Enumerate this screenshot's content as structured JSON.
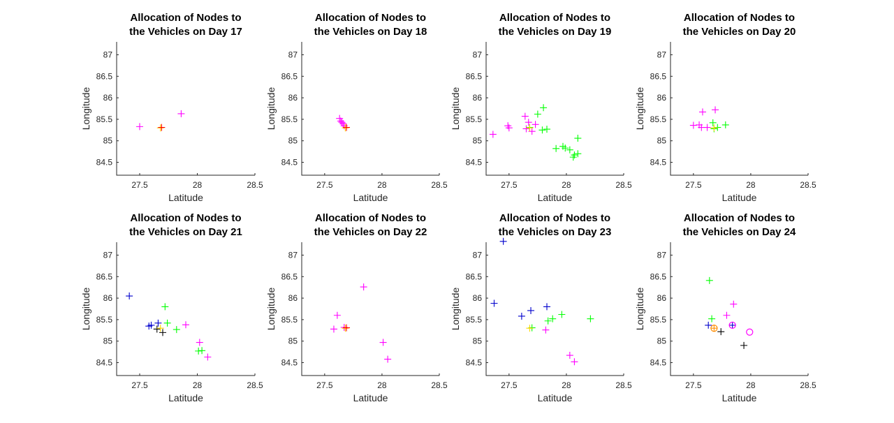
{
  "chart_data": [
    {
      "type": "scatter",
      "title_lines": [
        "Allocation of Nodes to",
        "the Vehicles on Day 17"
      ],
      "xlabel": "Latitude",
      "ylabel": "Longitude",
      "xlim": [
        27.3,
        28.5
      ],
      "ylim": [
        84.2,
        87.3
      ],
      "xticks": [
        "27.5",
        "28",
        "28.5"
      ],
      "xtick_values": [
        27.5,
        28,
        28.5
      ],
      "yticks": [
        "84.5",
        "85",
        "85.5",
        "86",
        "86.5",
        "87"
      ],
      "ytick_values": [
        84.5,
        85,
        85.5,
        86,
        86.5,
        87
      ],
      "series": [
        {
          "name": "vehicle-magenta",
          "color": "#ff00ff",
          "marker": "plus",
          "points": [
            [
              27.5,
              85.33
            ],
            [
              27.86,
              85.63
            ]
          ]
        },
        {
          "name": "vehicle-yellow",
          "color": "#ffd700",
          "marker": "plus",
          "points": [
            [
              27.68,
              85.3
            ]
          ]
        },
        {
          "name": "vehicle-red",
          "color": "#ff0000",
          "marker": "plus",
          "points": [
            [
              27.69,
              85.31
            ]
          ]
        }
      ]
    },
    {
      "type": "scatter",
      "title_lines": [
        "Allocation of Nodes to",
        "the Vehicles on Day 18"
      ],
      "xlabel": "Latitude",
      "ylabel": "Longitude",
      "xlim": [
        27.3,
        28.5
      ],
      "ylim": [
        84.2,
        87.3
      ],
      "xticks": [
        "27.5",
        "28",
        "28.5"
      ],
      "xtick_values": [
        27.5,
        28,
        28.5
      ],
      "yticks": [
        "84.5",
        "85",
        "85.5",
        "86",
        "86.5",
        "87"
      ],
      "ytick_values": [
        84.5,
        85,
        85.5,
        86,
        86.5,
        87
      ],
      "series": [
        {
          "name": "vehicle-magenta",
          "color": "#ff00ff",
          "marker": "plus",
          "points": [
            [
              27.63,
              85.52
            ],
            [
              27.64,
              85.46
            ],
            [
              27.65,
              85.43
            ],
            [
              27.66,
              85.4
            ],
            [
              27.67,
              85.35
            ]
          ]
        },
        {
          "name": "vehicle-yellow",
          "color": "#ffd700",
          "marker": "plus",
          "points": [
            [
              27.68,
              85.3
            ]
          ]
        },
        {
          "name": "vehicle-red",
          "color": "#ff0000",
          "marker": "plus",
          "points": [
            [
              27.69,
              85.31
            ]
          ]
        }
      ]
    },
    {
      "type": "scatter",
      "title_lines": [
        "Allocation of Nodes to",
        "the Vehicles on Day 19"
      ],
      "xlabel": "Latitude",
      "ylabel": "Longitude",
      "xlim": [
        27.3,
        28.5
      ],
      "ylim": [
        84.2,
        87.3
      ],
      "xticks": [
        "27.5",
        "28",
        "28.5"
      ],
      "xtick_values": [
        27.5,
        28,
        28.5
      ],
      "yticks": [
        "84.5",
        "85",
        "85.5",
        "86",
        "86.5",
        "87"
      ],
      "ytick_values": [
        84.5,
        85,
        85.5,
        86,
        86.5,
        87
      ],
      "series": [
        {
          "name": "vehicle-magenta",
          "color": "#ff00ff",
          "marker": "plus",
          "points": [
            [
              27.36,
              85.15
            ],
            [
              27.49,
              85.35
            ],
            [
              27.5,
              85.3
            ],
            [
              27.64,
              85.57
            ],
            [
              27.65,
              85.28
            ],
            [
              27.67,
              85.43
            ],
            [
              27.7,
              85.22
            ],
            [
              27.73,
              85.38
            ]
          ]
        },
        {
          "name": "vehicle-green",
          "color": "#00ff00",
          "marker": "plus",
          "points": [
            [
              27.68,
              85.31
            ],
            [
              27.75,
              85.62
            ],
            [
              27.8,
              85.77
            ],
            [
              27.79,
              85.25
            ],
            [
              27.83,
              85.27
            ],
            [
              27.91,
              84.82
            ],
            [
              27.97,
              84.87
            ],
            [
              27.99,
              84.83
            ],
            [
              28.03,
              84.79
            ],
            [
              28.07,
              84.67
            ],
            [
              28.06,
              84.62
            ],
            [
              28.1,
              84.7
            ],
            [
              28.1,
              85.06
            ]
          ]
        },
        {
          "name": "vehicle-yellow",
          "color": "#ffd700",
          "marker": "plus",
          "points": [
            [
              27.68,
              85.3
            ]
          ]
        }
      ]
    },
    {
      "type": "scatter",
      "title_lines": [
        "Allocation of Nodes to",
        "the Vehicles on Day 20"
      ],
      "xlabel": "Latitude",
      "ylabel": "Longitude",
      "xlim": [
        27.3,
        28.5
      ],
      "ylim": [
        84.2,
        87.3
      ],
      "xticks": [
        "27.5",
        "28",
        "28.5"
      ],
      "xtick_values": [
        27.5,
        28,
        28.5
      ],
      "yticks": [
        "84.5",
        "85",
        "85.5",
        "86",
        "86.5",
        "87"
      ],
      "ytick_values": [
        84.5,
        85,
        85.5,
        86,
        86.5,
        87
      ],
      "series": [
        {
          "name": "vehicle-magenta",
          "color": "#ff00ff",
          "marker": "plus",
          "points": [
            [
              27.5,
              85.36
            ],
            [
              27.55,
              85.37
            ],
            [
              27.57,
              85.31
            ],
            [
              27.58,
              85.67
            ],
            [
              27.62,
              85.31
            ],
            [
              27.69,
              85.72
            ]
          ]
        },
        {
          "name": "vehicle-green",
          "color": "#00ff00",
          "marker": "plus",
          "points": [
            [
              27.67,
              85.42
            ],
            [
              27.68,
              85.28
            ],
            [
              27.71,
              85.31
            ],
            [
              27.78,
              85.37
            ]
          ]
        },
        {
          "name": "vehicle-yellow",
          "color": "#ffd700",
          "marker": "plus",
          "points": [
            [
              27.68,
              85.3
            ]
          ]
        }
      ]
    },
    {
      "type": "scatter",
      "title_lines": [
        "Allocation of Nodes to",
        "the Vehicles on Day 21"
      ],
      "xlabel": "Latitude",
      "ylabel": "Longitude",
      "xlim": [
        27.3,
        28.5
      ],
      "ylim": [
        84.2,
        87.3
      ],
      "xticks": [
        "27.5",
        "28",
        "28.5"
      ],
      "xtick_values": [
        27.5,
        28,
        28.5
      ],
      "yticks": [
        "84.5",
        "85",
        "85.5",
        "86",
        "86.5",
        "87"
      ],
      "ytick_values": [
        84.5,
        85,
        85.5,
        86,
        86.5,
        87
      ],
      "series": [
        {
          "name": "vehicle-blue",
          "color": "#0000cc",
          "marker": "plus",
          "points": [
            [
              27.41,
              86.05
            ],
            [
              27.58,
              85.35
            ],
            [
              27.6,
              85.37
            ],
            [
              27.66,
              85.42
            ]
          ]
        },
        {
          "name": "vehicle-black",
          "color": "#000000",
          "marker": "plus",
          "points": [
            [
              27.65,
              85.28
            ],
            [
              27.7,
              85.2
            ]
          ]
        },
        {
          "name": "vehicle-green",
          "color": "#00ff00",
          "marker": "plus",
          "points": [
            [
              27.72,
              85.8
            ],
            [
              27.74,
              85.42
            ],
            [
              27.82,
              85.27
            ],
            [
              28.01,
              84.77
            ],
            [
              28.04,
              84.78
            ]
          ]
        },
        {
          "name": "vehicle-magenta",
          "color": "#ff00ff",
          "marker": "plus",
          "points": [
            [
              27.9,
              85.38
            ],
            [
              28.02,
              84.97
            ],
            [
              28.09,
              84.63
            ]
          ]
        },
        {
          "name": "vehicle-yellow",
          "color": "#ffd700",
          "marker": "plus",
          "points": [
            [
              27.68,
              85.3
            ]
          ]
        }
      ]
    },
    {
      "type": "scatter",
      "title_lines": [
        "Allocation of Nodes to",
        "the Vehicles on Day 22"
      ],
      "xlabel": "Latitude",
      "ylabel": "Longitude",
      "xlim": [
        27.3,
        28.5
      ],
      "ylim": [
        84.2,
        87.3
      ],
      "xticks": [
        "27.5",
        "28",
        "28.5"
      ],
      "xtick_values": [
        27.5,
        28,
        28.5
      ],
      "yticks": [
        "84.5",
        "85",
        "85.5",
        "86",
        "86.5",
        "87"
      ],
      "ytick_values": [
        84.5,
        85,
        85.5,
        86,
        86.5,
        87
      ],
      "series": [
        {
          "name": "vehicle-magenta",
          "color": "#ff00ff",
          "marker": "plus",
          "points": [
            [
              27.58,
              85.28
            ],
            [
              27.61,
              85.6
            ],
            [
              27.67,
              85.32
            ],
            [
              27.84,
              86.26
            ],
            [
              28.01,
              84.97
            ],
            [
              28.05,
              84.58
            ]
          ]
        },
        {
          "name": "vehicle-yellow",
          "color": "#ffd700",
          "marker": "plus",
          "points": [
            [
              27.68,
              85.3
            ]
          ]
        },
        {
          "name": "vehicle-red",
          "color": "#ff0000",
          "marker": "plus",
          "points": [
            [
              27.69,
              85.31
            ]
          ]
        }
      ]
    },
    {
      "type": "scatter",
      "title_lines": [
        "Allocation of Nodes to",
        "the Vehicles on Day 23"
      ],
      "xlabel": "Latitude",
      "ylabel": "Longitude",
      "xlim": [
        27.3,
        28.5
      ],
      "ylim": [
        84.2,
        87.3
      ],
      "xticks": [
        "27.5",
        "28",
        "28.5"
      ],
      "xtick_values": [
        27.5,
        28,
        28.5
      ],
      "yticks": [
        "84.5",
        "85",
        "85.5",
        "86",
        "86.5",
        "87"
      ],
      "ytick_values": [
        84.5,
        85,
        85.5,
        86,
        86.5,
        87
      ],
      "series": [
        {
          "name": "vehicle-blue",
          "color": "#0000cc",
          "marker": "plus",
          "points": [
            [
              27.45,
              87.32
            ],
            [
              27.37,
              85.88
            ],
            [
              27.61,
              85.58
            ],
            [
              27.69,
              85.71
            ],
            [
              27.83,
              85.8
            ]
          ]
        },
        {
          "name": "vehicle-green",
          "color": "#00ff00",
          "marker": "plus",
          "points": [
            [
              27.7,
              85.31
            ],
            [
              27.84,
              85.47
            ],
            [
              27.88,
              85.52
            ],
            [
              27.96,
              85.62
            ],
            [
              28.21,
              85.52
            ]
          ]
        },
        {
          "name": "vehicle-magenta",
          "color": "#ff00ff",
          "marker": "plus",
          "points": [
            [
              27.82,
              85.26
            ],
            [
              28.03,
              84.67
            ],
            [
              28.07,
              84.52
            ]
          ]
        },
        {
          "name": "vehicle-yellow",
          "color": "#ffd700",
          "marker": "plus",
          "points": [
            [
              27.68,
              85.3
            ]
          ]
        }
      ]
    },
    {
      "type": "scatter",
      "title_lines": [
        "Allocation of Nodes to",
        "the Vehicles on Day 24"
      ],
      "xlabel": "Latitude",
      "ylabel": "Longitude",
      "xlim": [
        27.3,
        28.5
      ],
      "ylim": [
        84.2,
        87.3
      ],
      "xticks": [
        "27.5",
        "28",
        "28.5"
      ],
      "xtick_values": [
        27.5,
        28,
        28.5
      ],
      "yticks": [
        "84.5",
        "85",
        "85.5",
        "86",
        "86.5",
        "87"
      ],
      "ytick_values": [
        84.5,
        85,
        85.5,
        86,
        86.5,
        87
      ],
      "series": [
        {
          "name": "vehicle-green",
          "color": "#00ff00",
          "marker": "plus",
          "points": [
            [
              27.64,
              86.41
            ],
            [
              27.66,
              85.52
            ]
          ]
        },
        {
          "name": "vehicle-blue",
          "color": "#0000cc",
          "marker": "plus",
          "points": [
            [
              27.63,
              85.37
            ],
            [
              27.84,
              85.37
            ]
          ]
        },
        {
          "name": "vehicle-magenta",
          "color": "#ff00ff",
          "marker": "plus",
          "points": [
            [
              27.79,
              85.6
            ],
            [
              27.85,
              85.86
            ]
          ]
        },
        {
          "name": "vehicle-black",
          "color": "#000000",
          "marker": "plus",
          "points": [
            [
              27.74,
              85.22
            ],
            [
              27.94,
              84.9
            ]
          ]
        },
        {
          "name": "vehicle-orange",
          "color": "#ff8c00",
          "marker": "plus",
          "points": [
            [
              27.68,
              85.3
            ]
          ]
        },
        {
          "name": "vehicle-magenta-circle",
          "color": "#ff00ff",
          "marker": "circle",
          "points": [
            [
              27.84,
              85.37
            ],
            [
              27.99,
              85.21
            ]
          ]
        },
        {
          "name": "vehicle-orange-circle",
          "color": "#ff8c00",
          "marker": "circle",
          "points": [
            [
              27.68,
              85.3
            ]
          ]
        }
      ]
    }
  ]
}
